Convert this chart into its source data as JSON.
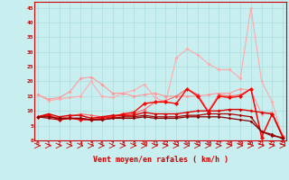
{
  "x": [
    0,
    1,
    2,
    3,
    4,
    5,
    6,
    7,
    8,
    9,
    10,
    11,
    12,
    13,
    14,
    15,
    16,
    17,
    18,
    19,
    20,
    21,
    22,
    23
  ],
  "background_color": "#c8eef0",
  "grid_color": "#aadddd",
  "xlabel": "Vent moyen/en rafales ( km/h )",
  "xlabel_color": "#cc0000",
  "tick_color": "#cc0000",
  "series": [
    {
      "color": "#ffaaaa",
      "linewidth": 0.8,
      "markersize": 2.0,
      "values": [
        15.5,
        13.5,
        14.0,
        14.5,
        15.0,
        20.0,
        15.0,
        14.5,
        16.0,
        17.0,
        19.0,
        14.5,
        13.0,
        28.0,
        31.0,
        29.0,
        26.0,
        24.0,
        24.0,
        21.0,
        45.0,
        20.0,
        13.0,
        1.0
      ]
    },
    {
      "color": "#ff9999",
      "linewidth": 0.8,
      "markersize": 2.0,
      "values": [
        15.5,
        14.0,
        14.5,
        16.5,
        21.0,
        21.5,
        19.0,
        16.0,
        16.0,
        15.0,
        15.5,
        16.0,
        15.0,
        15.0,
        15.0,
        15.0,
        15.5,
        16.0,
        16.0,
        17.5,
        17.0,
        9.0,
        9.5,
        1.5
      ]
    },
    {
      "color": "#ff6666",
      "linewidth": 0.8,
      "markersize": 2.0,
      "values": [
        8.0,
        8.5,
        7.5,
        8.0,
        9.0,
        8.5,
        8.0,
        8.0,
        8.5,
        9.0,
        10.5,
        13.0,
        13.5,
        15.0,
        17.5,
        15.5,
        10.0,
        15.5,
        15.0,
        15.5,
        17.5,
        1.5,
        9.0,
        1.5
      ]
    },
    {
      "color": "#ff0000",
      "linewidth": 1.0,
      "markersize": 2.5,
      "values": [
        8.0,
        8.5,
        7.0,
        7.5,
        7.0,
        7.0,
        7.5,
        8.0,
        9.0,
        9.5,
        12.5,
        13.0,
        13.0,
        12.5,
        17.5,
        15.0,
        9.5,
        15.0,
        14.5,
        15.0,
        17.5,
        1.0,
        9.0,
        1.0
      ]
    },
    {
      "color": "#dd0000",
      "linewidth": 1.0,
      "markersize": 2.0,
      "values": [
        8.0,
        9.0,
        8.0,
        8.5,
        8.5,
        7.5,
        8.0,
        8.5,
        8.5,
        8.5,
        9.5,
        9.0,
        9.0,
        9.0,
        9.5,
        10.0,
        10.0,
        10.0,
        10.5,
        10.5,
        10.0,
        9.5,
        9.0,
        1.0
      ]
    },
    {
      "color": "#aa0000",
      "linewidth": 0.9,
      "markersize": 1.8,
      "values": [
        8.0,
        7.5,
        7.0,
        7.5,
        7.5,
        7.0,
        7.0,
        7.5,
        8.0,
        8.0,
        8.5,
        8.0,
        8.0,
        8.0,
        8.5,
        8.5,
        9.0,
        9.0,
        9.0,
        8.5,
        8.0,
        3.0,
        1.5,
        1.0
      ]
    },
    {
      "color": "#880000",
      "linewidth": 0.9,
      "markersize": 1.8,
      "values": [
        8.0,
        8.0,
        7.5,
        7.5,
        7.5,
        7.0,
        7.0,
        7.5,
        7.5,
        7.5,
        8.0,
        7.5,
        7.5,
        7.5,
        8.0,
        8.0,
        8.0,
        8.0,
        7.5,
        7.0,
        6.5,
        3.0,
        2.0,
        0.5
      ]
    }
  ],
  "ylim": [
    0,
    47
  ],
  "yticks": [
    0,
    5,
    10,
    15,
    20,
    25,
    30,
    35,
    40,
    45
  ],
  "xlim": [
    -0.3,
    23.3
  ],
  "figsize": [
    3.2,
    2.0
  ],
  "dpi": 100
}
